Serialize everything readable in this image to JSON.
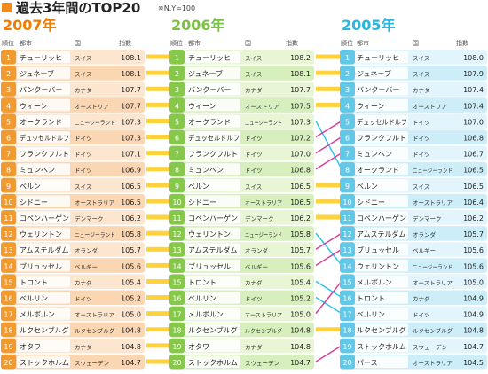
{
  "title": "過去3年間のTOP20",
  "note": "※N.Y=100",
  "header": {
    "rank": "順位",
    "city": "都市",
    "country": "国",
    "index": "指数"
  },
  "colors": {
    "title_square": "#f08c1e",
    "c2007": {
      "heading": "#f07c00",
      "rank": "#f39a2e",
      "row_a": "#fde6cf",
      "row_b": "#fbd6b2",
      "city": "#ffffff"
    },
    "c2006": {
      "heading": "#7cc242",
      "rank": "#86c84a",
      "row_a": "#e8f6d6",
      "row_b": "#d7efbd",
      "city": "#ffffff"
    },
    "c2005": {
      "heading": "#29b6e0",
      "rank": "#63c8e8",
      "row_a": "#e2f5fc",
      "row_b": "#cdeef9",
      "city": "#ffffff"
    },
    "connector_same": "#ffd23c",
    "connector_cyan": "#2fc4e8",
    "connector_pink": "#d63f9a"
  },
  "chart_data": {
    "type": "table",
    "title": "過去3年間のTOP20",
    "years": [
      {
        "year": "2007年",
        "rows": [
          {
            "rank": "1",
            "city": "チューリッヒ",
            "country": "スイス",
            "index": 108.1
          },
          {
            "rank": "2",
            "city": "ジュネーブ",
            "country": "スイス",
            "index": 108.1
          },
          {
            "rank": "3",
            "city": "バンクーバー",
            "country": "カナダ",
            "index": 107.7
          },
          {
            "rank": "4",
            "city": "ウィーン",
            "country": "オーストリア",
            "index": 107.7
          },
          {
            "rank": "5",
            "city": "オークランド",
            "country": "ニュージーランド",
            "index": 107.3
          },
          {
            "rank": "6",
            "city": "デュッセルドルフ",
            "country": "ドイツ",
            "index": 107.3
          },
          {
            "rank": "7",
            "city": "フランクフルト",
            "country": "ドイツ",
            "index": 107.1
          },
          {
            "rank": "8",
            "city": "ミュンヘン",
            "country": "ドイツ",
            "index": 106.9
          },
          {
            "rank": "9",
            "city": "ベルン",
            "country": "スイス",
            "index": 106.5
          },
          {
            "rank": "10",
            "city": "シドニー",
            "country": "オーストラリア",
            "index": 106.5
          },
          {
            "rank": "11",
            "city": "コペンハーゲン",
            "country": "デンマーク",
            "index": 106.2
          },
          {
            "rank": "12",
            "city": "ウェリントン",
            "country": "ニュージーランド",
            "index": 105.8
          },
          {
            "rank": "13",
            "city": "アムステルダム",
            "country": "オランダ",
            "index": 105.7
          },
          {
            "rank": "14",
            "city": "ブリュッセル",
            "country": "ベルギー",
            "index": 105.6
          },
          {
            "rank": "15",
            "city": "トロント",
            "country": "カナダ",
            "index": 105.4
          },
          {
            "rank": "16",
            "city": "ベルリン",
            "country": "ドイツ",
            "index": 105.2
          },
          {
            "rank": "17",
            "city": "メルボルン",
            "country": "オーストラリア",
            "index": 105.0
          },
          {
            "rank": "18",
            "city": "ルクセンブルグ",
            "country": "ルクセンブルグ",
            "index": 104.8
          },
          {
            "rank": "19",
            "city": "オタワ",
            "country": "カナダ",
            "index": 104.8
          },
          {
            "rank": "20",
            "city": "ストックホルム",
            "country": "スウェーデン",
            "index": 104.7
          }
        ]
      },
      {
        "year": "2006年",
        "rows": [
          {
            "rank": "1",
            "city": "チューリッヒ",
            "country": "スイス",
            "index": 108.2
          },
          {
            "rank": "2",
            "city": "ジュネーブ",
            "country": "スイス",
            "index": 108.1
          },
          {
            "rank": "3",
            "city": "バンクーバー",
            "country": "カナダ",
            "index": 107.7
          },
          {
            "rank": "4",
            "city": "ウィーン",
            "country": "オーストリア",
            "index": 107.5
          },
          {
            "rank": "5",
            "city": "オークランド",
            "country": "ニュージーランド",
            "index": 107.3
          },
          {
            "rank": "6",
            "city": "デュッセルドルフ",
            "country": "ドイツ",
            "index": 107.2
          },
          {
            "rank": "7",
            "city": "フランクフルト",
            "country": "ドイツ",
            "index": 107.0
          },
          {
            "rank": "8",
            "city": "ミュンヘン",
            "country": "ドイツ",
            "index": 106.8
          },
          {
            "rank": "9",
            "city": "ベルン",
            "country": "スイス",
            "index": 106.5
          },
          {
            "rank": "10",
            "city": "シドニー",
            "country": "オーストラリア",
            "index": 106.5
          },
          {
            "rank": "11",
            "city": "コペンハーゲン",
            "country": "デンマーク",
            "index": 106.2
          },
          {
            "rank": "12",
            "city": "ウェリントン",
            "country": "ニュージーランド",
            "index": 105.8
          },
          {
            "rank": "13",
            "city": "アムステルダム",
            "country": "オランダ",
            "index": 105.7
          },
          {
            "rank": "14",
            "city": "ブリュッセル",
            "country": "ベルギー",
            "index": 105.6
          },
          {
            "rank": "15",
            "city": "トロント",
            "country": "カナダ",
            "index": 105.4
          },
          {
            "rank": "16",
            "city": "ベルリン",
            "country": "ドイツ",
            "index": 105.2
          },
          {
            "rank": "17",
            "city": "メルボルン",
            "country": "オーストラリア",
            "index": 105.0
          },
          {
            "rank": "18",
            "city": "ルクセンブルグ",
            "country": "ルクセンブルグ",
            "index": 104.8
          },
          {
            "rank": "19",
            "city": "オタワ",
            "country": "カナダ",
            "index": 104.8
          },
          {
            "rank": "20",
            "city": "ストックホルム",
            "country": "スウェーデン",
            "index": 104.7
          }
        ]
      },
      {
        "year": "2005年",
        "rows": [
          {
            "rank": "1",
            "city": "チューリッヒ",
            "country": "スイス",
            "index": 108.0
          },
          {
            "rank": "2",
            "city": "ジュネーブ",
            "country": "スイス",
            "index": 107.9
          },
          {
            "rank": "3",
            "city": "バンクーバー",
            "country": "カナダ",
            "index": 107.4
          },
          {
            "rank": "4",
            "city": "ウィーン",
            "country": "オーストリア",
            "index": 107.4
          },
          {
            "rank": "5",
            "city": "デュッセルドルフ",
            "country": "ドイツ",
            "index": 107.0
          },
          {
            "rank": "6",
            "city": "フランクフルト",
            "country": "ドイツ",
            "index": 106.8
          },
          {
            "rank": "7",
            "city": "ミュンヘン",
            "country": "ドイツ",
            "index": 106.7
          },
          {
            "rank": "8",
            "city": "オークランド",
            "country": "ニュージーランド",
            "index": 106.5
          },
          {
            "rank": "9",
            "city": "ベルン",
            "country": "スイス",
            "index": 106.5
          },
          {
            "rank": "10",
            "city": "シドニー",
            "country": "オーストラリア",
            "index": 106.4
          },
          {
            "rank": "11",
            "city": "コペンハーゲン",
            "country": "デンマーク",
            "index": 106.2
          },
          {
            "rank": "12",
            "city": "アムステルダム",
            "country": "オランダ",
            "index": 105.7
          },
          {
            "rank": "13",
            "city": "ブリュッセル",
            "country": "ベルギー",
            "index": 105.6
          },
          {
            "rank": "14",
            "city": "ウェリントン",
            "country": "ニュージーランド",
            "index": 105.6
          },
          {
            "rank": "15",
            "city": "メルボルン",
            "country": "オーストラリア",
            "index": 105.0
          },
          {
            "rank": "16",
            "city": "トロント",
            "country": "カナダ",
            "index": 104.9
          },
          {
            "rank": "17",
            "city": "ベルリン",
            "country": "ドイツ",
            "index": 104.9
          },
          {
            "rank": "18",
            "city": "ルクセンブルグ",
            "country": "ルクセンブルグ",
            "index": 104.8
          },
          {
            "rank": "19",
            "city": "ストックホルム",
            "country": "スウェーデン",
            "index": 104.7
          },
          {
            "rank": "20",
            "city": "パース",
            "country": "オーストラリア",
            "index": 104.5
          }
        ]
      }
    ]
  }
}
